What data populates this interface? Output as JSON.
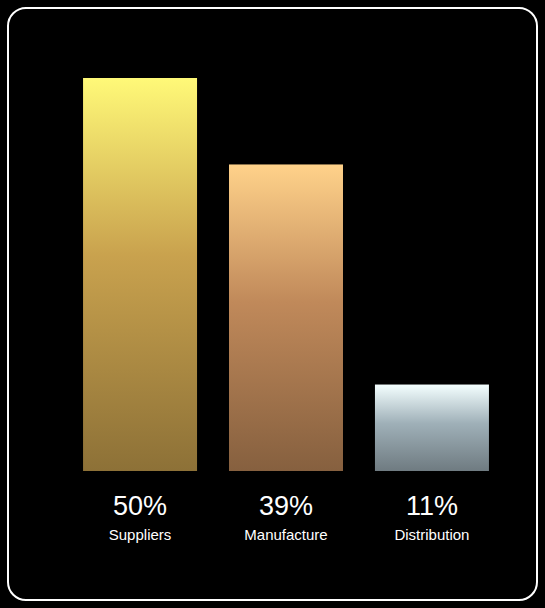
{
  "chart_data": {
    "type": "bar",
    "categories": [
      "Suppliers",
      "Manufacture",
      "Distribution"
    ],
    "values": [
      50,
      39,
      11
    ],
    "value_labels": [
      "50%",
      "39%",
      "11%"
    ],
    "colors": [
      "#c9a24e",
      "#c0895a",
      "#9fb0b8"
    ],
    "data_labels": true,
    "tick_labels": false
  }
}
